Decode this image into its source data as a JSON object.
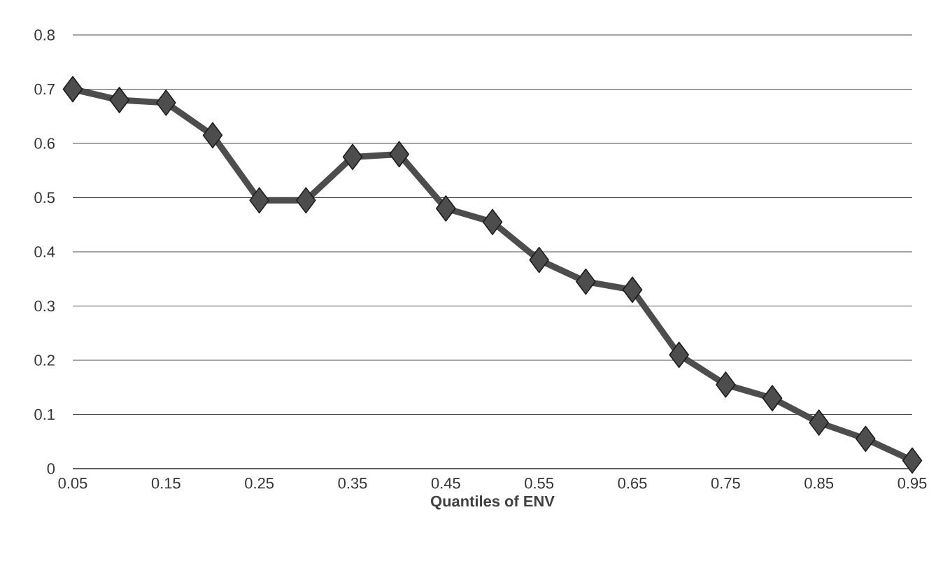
{
  "chart_data": {
    "type": "line",
    "xlabel": "Quantiles of ENV",
    "x": [
      0.05,
      0.1,
      0.15,
      0.2,
      0.25,
      0.3,
      0.35,
      0.4,
      0.45,
      0.5,
      0.55,
      0.6,
      0.65,
      0.7,
      0.75,
      0.8,
      0.85,
      0.9,
      0.95
    ],
    "values": [
      0.7,
      0.68,
      0.675,
      0.615,
      0.495,
      0.495,
      0.575,
      0.58,
      0.48,
      0.455,
      0.385,
      0.345,
      0.33,
      0.21,
      0.155,
      0.13,
      0.085,
      0.055,
      0.015
    ],
    "color": "#4d4d4d",
    "marker": "diamond",
    "line_style": "solid",
    "xlim": [
      0.05,
      0.95
    ],
    "xticks": [
      0.05,
      0.15,
      0.25,
      0.35,
      0.45,
      0.55,
      0.65,
      0.75,
      0.85,
      0.95
    ],
    "ylim": [
      0,
      0.8
    ],
    "yticks": [
      0,
      0.1,
      0.2,
      0.3,
      0.4,
      0.5,
      0.6,
      0.7,
      0.8
    ],
    "grid": "y"
  }
}
